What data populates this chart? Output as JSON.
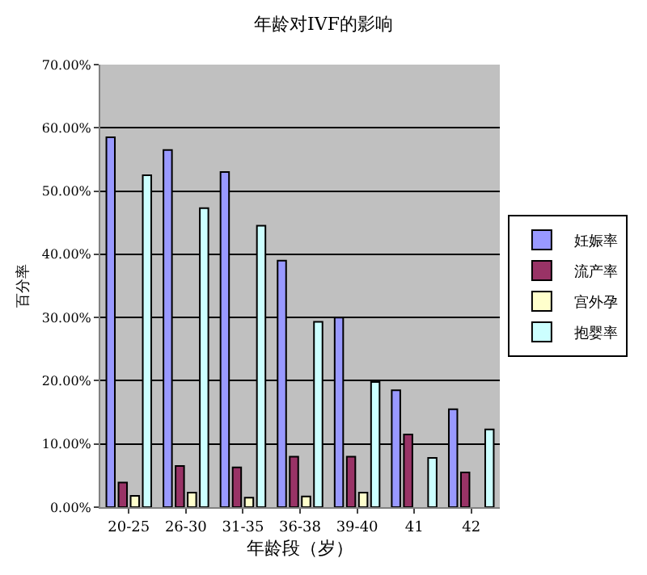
{
  "chart_data": {
    "type": "bar",
    "title": "年龄对IVF的影响",
    "xlabel": "年龄段（岁）",
    "ylabel": "百分率",
    "categories": [
      "20-25",
      "26-30",
      "31-35",
      "36-38",
      "39-40",
      "41",
      "42"
    ],
    "series": [
      {
        "name": "妊娠率",
        "color": "#9999ff",
        "values": [
          58.5,
          56.5,
          53,
          39,
          30,
          18.5,
          15.5
        ]
      },
      {
        "name": "流产率",
        "color": "#993366",
        "values": [
          3.9,
          6.5,
          6.3,
          8,
          8,
          11.5,
          5.5
        ]
      },
      {
        "name": "宫外孕",
        "color": "#ffffcc",
        "values": [
          1.8,
          2.3,
          1.5,
          1.7,
          2.3,
          null,
          null
        ]
      },
      {
        "name": "抱婴率",
        "color": "#ccffff",
        "values": [
          52.5,
          47.3,
          44.5,
          29.3,
          19.8,
          7.8,
          12.3
        ]
      }
    ],
    "ylim": [
      0,
      70
    ],
    "yticks": [
      {
        "value": 0,
        "label": "0.00%"
      },
      {
        "value": 10,
        "label": "10.00%"
      },
      {
        "value": 20,
        "label": "20.00%"
      },
      {
        "value": 30,
        "label": "30.00%"
      },
      {
        "value": 40,
        "label": "40.00%"
      },
      {
        "value": 50,
        "label": "50.00%"
      },
      {
        "value": 60,
        "label": "60.00%"
      },
      {
        "value": 70,
        "label": "70.00%"
      }
    ],
    "grid": "y",
    "legend": "right"
  }
}
